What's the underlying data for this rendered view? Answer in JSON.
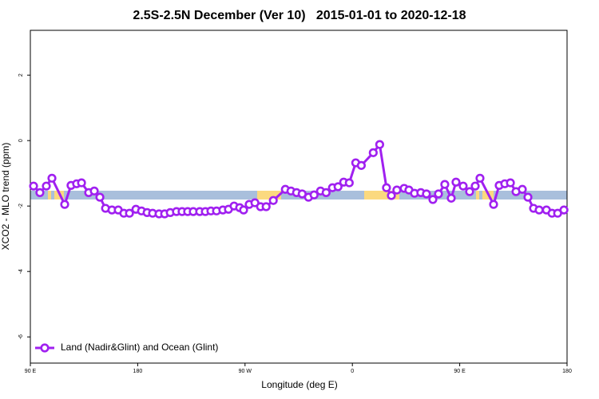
{
  "chart_data": {
    "type": "line",
    "title": "2.5S-2.5N December (Ver 10)   2015-01-01 to 2020-12-18",
    "xlabel": "Longitude (deg E)",
    "ylabel": "XCO2 - MLO trend (ppm)",
    "xlim": [
      90,
      540
    ],
    "ylim": [
      -6.8,
      3.37
    ],
    "xticks": [
      {
        "value": 90,
        "label": "90 E"
      },
      180,
      {
        "value": 270,
        "label": "90 W"
      },
      {
        "value": 360,
        "label": "0"
      },
      {
        "value": 450,
        "label": "90 E"
      },
      {
        "value": 540,
        "label": "180"
      }
    ],
    "yticks": [
      -6,
      -4,
      -2,
      0,
      2
    ],
    "legend": "bottom-left",
    "x": [
      92.7,
      98.0,
      103.4,
      108.1,
      118.8,
      124.1,
      128.8,
      132.9,
      138.9,
      143.6,
      148.3,
      153.0,
      158.4,
      163.7,
      168.4,
      173.1,
      178.5,
      183.2,
      187.9,
      192.5,
      197.9,
      202.6,
      207.3,
      212.5,
      217.2,
      221.9,
      226.6,
      232.0,
      236.7,
      241.4,
      246.1,
      251.4,
      256.1,
      260.8,
      265.5,
      268.8,
      273.5,
      278.3,
      283.0,
      287.7,
      293.7,
      303.8,
      308.5,
      313.2,
      317.9,
      323.2,
      327.9,
      333.3,
      338.0,
      343.3,
      348.0,
      352.7,
      357.4,
      362.8,
      367.5,
      377.5,
      382.9,
      388.6,
      392.7,
      397.3,
      403.4,
      407.4,
      412.1,
      417.4,
      422.1,
      427.5,
      432.2,
      437.5,
      442.9,
      446.9,
      452.9,
      458.3,
      463.0,
      467.0,
      478.4,
      483.1,
      487.8,
      492.5,
      497.2,
      502.5,
      507.2,
      511.9,
      516.6,
      522.7,
      527.4,
      532.1,
      537.4
    ],
    "series": [
      {
        "name": "Land (Nadir&Glint) and Ocean (Glint)",
        "color": "#a020f0",
        "values": [
          -1.39,
          -1.59,
          -1.39,
          -1.15,
          -1.95,
          -1.37,
          -1.32,
          -1.29,
          -1.59,
          -1.54,
          -1.73,
          -2.07,
          -2.12,
          -2.12,
          -2.22,
          -2.22,
          -2.1,
          -2.15,
          -2.2,
          -2.22,
          -2.24,
          -2.24,
          -2.2,
          -2.17,
          -2.17,
          -2.17,
          -2.17,
          -2.17,
          -2.17,
          -2.15,
          -2.15,
          -2.12,
          -2.1,
          -2.0,
          -2.05,
          -2.12,
          -1.95,
          -1.9,
          -2.02,
          -2.02,
          -1.83,
          -1.49,
          -1.54,
          -1.59,
          -1.63,
          -1.73,
          -1.66,
          -1.54,
          -1.59,
          -1.44,
          -1.41,
          -1.27,
          -1.29,
          -0.68,
          -0.76,
          -0.37,
          -0.12,
          -1.44,
          -1.68,
          -1.51,
          -1.46,
          -1.51,
          -1.61,
          -1.59,
          -1.63,
          -1.8,
          -1.63,
          -1.34,
          -1.76,
          -1.27,
          -1.39,
          -1.56,
          -1.39,
          -1.15,
          -1.95,
          -1.37,
          -1.32,
          -1.29,
          -1.56,
          -1.49,
          -1.73,
          -2.07,
          -2.12,
          -2.12,
          -2.22,
          -2.22,
          -2.12
        ]
      }
    ]
  }
}
